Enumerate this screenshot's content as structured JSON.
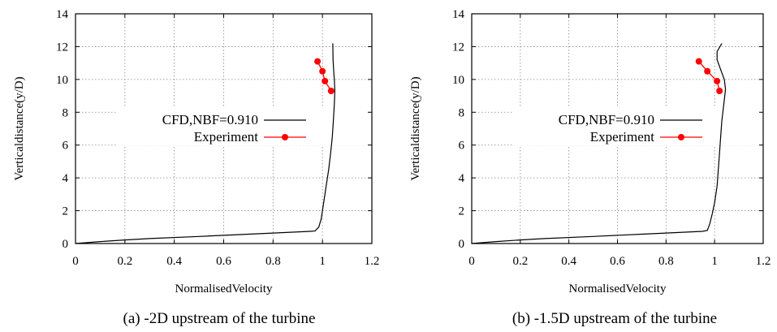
{
  "chart_data": [
    {
      "type": "line",
      "caption": "(a) -2D upstream of the turbine",
      "xlabel": "NormalisedVelocity",
      "ylabel": "Verticaldistance(y/D)",
      "xlim": [
        0,
        1.2
      ],
      "ylim": [
        0,
        14
      ],
      "xticks": [
        "0",
        "0.2",
        "0.4",
        "0.6",
        "0.8",
        "1",
        "1.2"
      ],
      "yticks": [
        "0",
        "2",
        "4",
        "6",
        "8",
        "10",
        "12",
        "14"
      ],
      "grid": true,
      "legend_position": "center-left",
      "series": [
        {
          "name": "CFD,NBF=0.910",
          "style": "line",
          "color": "#000000",
          "points": [
            [
              0.0,
              0.0
            ],
            [
              0.1,
              0.12
            ],
            [
              0.2,
              0.22
            ],
            [
              0.3,
              0.3
            ],
            [
              0.5,
              0.43
            ],
            [
              0.7,
              0.57
            ],
            [
              0.8,
              0.64
            ],
            [
              0.95,
              0.74
            ],
            [
              0.97,
              0.76
            ],
            [
              0.985,
              1.0
            ],
            [
              0.995,
              1.5
            ],
            [
              1.005,
              2.5
            ],
            [
              1.015,
              3.5
            ],
            [
              1.025,
              4.5
            ],
            [
              1.033,
              5.5
            ],
            [
              1.04,
              6.5
            ],
            [
              1.044,
              7.5
            ],
            [
              1.048,
              8.5
            ],
            [
              1.05,
              9.3
            ],
            [
              1.048,
              10.0
            ],
            [
              1.045,
              10.6
            ],
            [
              1.043,
              11.2
            ],
            [
              1.042,
              12.2
            ]
          ]
        },
        {
          "name": "Experiment",
          "style": "line-marker",
          "color": "#ff0000",
          "points": [
            [
              0.98,
              11.1
            ],
            [
              1.0,
              10.5
            ],
            [
              1.01,
              9.9
            ],
            [
              1.035,
              9.3
            ]
          ]
        }
      ]
    },
    {
      "type": "line",
      "caption": "(b) -1.5D upstream of the turbine",
      "xlabel": "NormalisedVelocity",
      "ylabel": "Verticaldistance(y/D)",
      "xlim": [
        0,
        1.2
      ],
      "ylim": [
        0,
        14
      ],
      "xticks": [
        "0",
        "0.2",
        "0.4",
        "0.6",
        "0.8",
        "1",
        "1.2"
      ],
      "yticks": [
        "0",
        "2",
        "4",
        "6",
        "8",
        "10",
        "12",
        "14"
      ],
      "grid": true,
      "legend_position": "center-left",
      "series": [
        {
          "name": "CFD,NBF=0.910",
          "style": "line",
          "color": "#000000",
          "points": [
            [
              0.0,
              0.0
            ],
            [
              0.1,
              0.12
            ],
            [
              0.2,
              0.22
            ],
            [
              0.3,
              0.3
            ],
            [
              0.5,
              0.43
            ],
            [
              0.7,
              0.57
            ],
            [
              0.8,
              0.64
            ],
            [
              0.95,
              0.74
            ],
            [
              0.97,
              0.8
            ],
            [
              0.98,
              1.2
            ],
            [
              0.99,
              1.8
            ],
            [
              1.0,
              2.5
            ],
            [
              1.01,
              3.5
            ],
            [
              1.015,
              4.5
            ],
            [
              1.02,
              5.5
            ],
            [
              1.025,
              6.5
            ],
            [
              1.03,
              7.5
            ],
            [
              1.038,
              8.5
            ],
            [
              1.045,
              9.4
            ],
            [
              1.04,
              10.0
            ],
            [
              1.025,
              10.6
            ],
            [
              1.01,
              11.2
            ],
            [
              1.01,
              11.7
            ],
            [
              1.03,
              12.2
            ]
          ]
        },
        {
          "name": "Experiment",
          "style": "line-marker",
          "color": "#ff0000",
          "points": [
            [
              0.935,
              11.1
            ],
            [
              0.97,
              10.5
            ],
            [
              1.01,
              9.9
            ],
            [
              1.02,
              9.3
            ]
          ]
        }
      ]
    }
  ]
}
